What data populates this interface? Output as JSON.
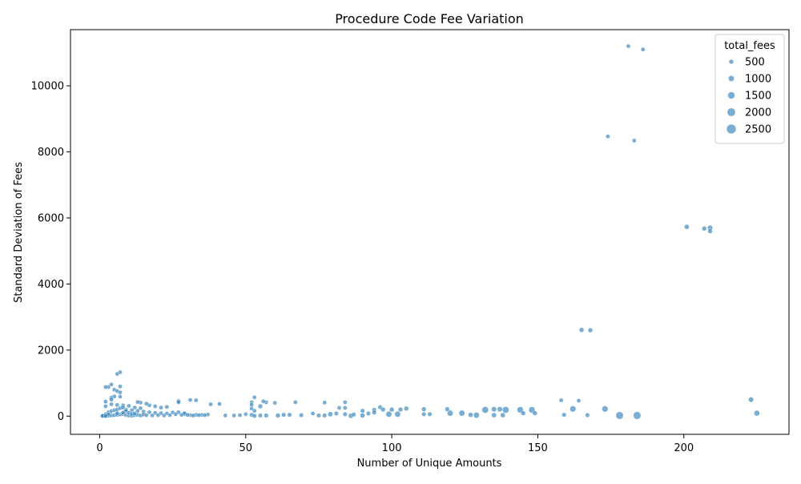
{
  "chart_data": {
    "type": "scatter",
    "title": "Procedure Code Fee Variation",
    "xlabel": "Number of Unique Amounts",
    "ylabel": "Standard Deviation of Fees",
    "xlim": [
      -10,
      236
    ],
    "ylim": [
      -550,
      11700
    ],
    "x_ticks": [
      0,
      50,
      100,
      150,
      200
    ],
    "y_ticks": [
      0,
      2000,
      4000,
      6000,
      8000,
      10000
    ],
    "grid": false,
    "legend": {
      "title": "total_fees",
      "placement": "top-right",
      "entries": [
        500,
        1000,
        1500,
        2000,
        2500
      ]
    },
    "point_color": "#1f77b4",
    "size_range": [
      0,
      2800
    ],
    "points": [
      [
        181,
        11200,
        300
      ],
      [
        186,
        11100,
        300
      ],
      [
        174,
        8470,
        300
      ],
      [
        183,
        8340,
        300
      ],
      [
        201,
        5730,
        600
      ],
      [
        207,
        5680,
        500
      ],
      [
        209,
        5700,
        700
      ],
      [
        209,
        5600,
        500
      ],
      [
        165,
        2610,
        500
      ],
      [
        168,
        2600,
        500
      ],
      [
        223,
        500,
        700
      ],
      [
        225,
        90,
        900
      ],
      [
        158,
        480,
        300
      ],
      [
        164,
        470,
        300
      ],
      [
        159,
        40,
        400
      ],
      [
        167,
        30,
        400
      ],
      [
        162,
        220,
        1100
      ],
      [
        173,
        220,
        1100
      ],
      [
        178,
        20,
        1700
      ],
      [
        184,
        20,
        1700
      ],
      [
        144,
        190,
        1200
      ],
      [
        148,
        190,
        1200
      ],
      [
        145,
        90,
        500
      ],
      [
        149,
        90,
        500
      ],
      [
        132,
        190,
        1300
      ],
      [
        139,
        190,
        1300
      ],
      [
        135,
        210,
        700
      ],
      [
        137,
        210,
        700
      ],
      [
        124,
        90,
        1000
      ],
      [
        120,
        90,
        1000
      ],
      [
        127,
        40,
        600
      ],
      [
        129,
        30,
        1000
      ],
      [
        135,
        30,
        600
      ],
      [
        138,
        30,
        600
      ],
      [
        119,
        210,
        500
      ],
      [
        111,
        210,
        500
      ],
      [
        111,
        60,
        400
      ],
      [
        113,
        60,
        400
      ],
      [
        105,
        230,
        500
      ],
      [
        103,
        200,
        500
      ],
      [
        99,
        60,
        1000
      ],
      [
        102,
        60,
        1000
      ],
      [
        100,
        200,
        500
      ],
      [
        96,
        270,
        400
      ],
      [
        97,
        200,
        500
      ],
      [
        94,
        190,
        400
      ],
      [
        94,
        110,
        400
      ],
      [
        92,
        80,
        400
      ],
      [
        90,
        160,
        400
      ],
      [
        90,
        20,
        600
      ],
      [
        86,
        10,
        600
      ],
      [
        87,
        50,
        400
      ],
      [
        84,
        420,
        300
      ],
      [
        84,
        250,
        300
      ],
      [
        82,
        250,
        300
      ],
      [
        81,
        80,
        400
      ],
      [
        79,
        60,
        600
      ],
      [
        84,
        60,
        400
      ],
      [
        77,
        410,
        300
      ],
      [
        73,
        80,
        300
      ],
      [
        75,
        20,
        400
      ],
      [
        77,
        20,
        400
      ],
      [
        69,
        30,
        400
      ],
      [
        67,
        420,
        300
      ],
      [
        65,
        40,
        400
      ],
      [
        63,
        40,
        400
      ],
      [
        61,
        20,
        500
      ],
      [
        60,
        400,
        300
      ],
      [
        57,
        420,
        300
      ],
      [
        56,
        450,
        300
      ],
      [
        55,
        300,
        500
      ],
      [
        53,
        570,
        300
      ],
      [
        52,
        420,
        300
      ],
      [
        52,
        340,
        300
      ],
      [
        52,
        230,
        300
      ],
      [
        53,
        160,
        300
      ],
      [
        52,
        40,
        400
      ],
      [
        53,
        10,
        400
      ],
      [
        55,
        20,
        400
      ],
      [
        57,
        20,
        400
      ],
      [
        50,
        60,
        300
      ],
      [
        48,
        30,
        300
      ],
      [
        46,
        20,
        300
      ],
      [
        43,
        20,
        300
      ],
      [
        41,
        370,
        300
      ],
      [
        38,
        360,
        300
      ],
      [
        37,
        50,
        300
      ],
      [
        35,
        40,
        300
      ],
      [
        33,
        40,
        300
      ],
      [
        31,
        30,
        300
      ],
      [
        33,
        480,
        300
      ],
      [
        31,
        490,
        300
      ],
      [
        29,
        60,
        300
      ],
      [
        27,
        460,
        300
      ],
      [
        27,
        420,
        300
      ],
      [
        23,
        280,
        300
      ],
      [
        21,
        260,
        300
      ],
      [
        19,
        300,
        300
      ],
      [
        17,
        330,
        300
      ],
      [
        16,
        380,
        300
      ],
      [
        14,
        410,
        300
      ],
      [
        13,
        430,
        300
      ],
      [
        7,
        1330,
        300
      ],
      [
        6,
        1280,
        300
      ],
      [
        7,
        900,
        300
      ],
      [
        4,
        960,
        300
      ],
      [
        3,
        880,
        300
      ],
      [
        2,
        880,
        300
      ],
      [
        5,
        800,
        300
      ],
      [
        6,
        760,
        300
      ],
      [
        7,
        720,
        300
      ],
      [
        5,
        600,
        300
      ],
      [
        7,
        590,
        300
      ],
      [
        4,
        560,
        300
      ],
      [
        4,
        500,
        300
      ],
      [
        2,
        440,
        300
      ],
      [
        2,
        300,
        300
      ],
      [
        4,
        360,
        300
      ],
      [
        6,
        340,
        300
      ],
      [
        8,
        330,
        300
      ],
      [
        10,
        310,
        300
      ],
      [
        12,
        260,
        300
      ],
      [
        14,
        240,
        300
      ],
      [
        9,
        200,
        300
      ],
      [
        11,
        180,
        300
      ],
      [
        13,
        160,
        300
      ],
      [
        15,
        140,
        300
      ],
      [
        17,
        120,
        300
      ],
      [
        19,
        100,
        300
      ],
      [
        21,
        90,
        300
      ],
      [
        23,
        80,
        300
      ],
      [
        25,
        110,
        300
      ],
      [
        27,
        120,
        300
      ],
      [
        29,
        90,
        300
      ],
      [
        26,
        60,
        300
      ],
      [
        28,
        40,
        300
      ],
      [
        30,
        40,
        300
      ],
      [
        32,
        20,
        300
      ],
      [
        34,
        30,
        300
      ],
      [
        36,
        30,
        300
      ],
      [
        1,
        20,
        300
      ],
      [
        2,
        10,
        300
      ],
      [
        3,
        10,
        300
      ],
      [
        4,
        20,
        300
      ],
      [
        5,
        30,
        300
      ],
      [
        6,
        40,
        300
      ],
      [
        7,
        50,
        300
      ],
      [
        8,
        60,
        300
      ],
      [
        9,
        30,
        300
      ],
      [
        10,
        20,
        300
      ],
      [
        11,
        10,
        300
      ],
      [
        12,
        30,
        300
      ],
      [
        13,
        40,
        300
      ],
      [
        14,
        20,
        300
      ],
      [
        15,
        50,
        300
      ],
      [
        16,
        30,
        300
      ],
      [
        18,
        20,
        300
      ],
      [
        20,
        30,
        300
      ],
      [
        22,
        20,
        300
      ],
      [
        24,
        30,
        300
      ],
      [
        3,
        120,
        300
      ],
      [
        4,
        150,
        300
      ],
      [
        5,
        180,
        300
      ],
      [
        6,
        200,
        300
      ],
      [
        7,
        240,
        300
      ],
      [
        8,
        260,
        300
      ],
      [
        9,
        150,
        300
      ],
      [
        10,
        100,
        300
      ],
      [
        11,
        70,
        300
      ],
      [
        12,
        80,
        300
      ],
      [
        2,
        60,
        300
      ],
      [
        3,
        50,
        300
      ],
      [
        1,
        5,
        300
      ],
      [
        2,
        5,
        300
      ],
      [
        6,
        90,
        300
      ],
      [
        8,
        110,
        300
      ]
    ]
  }
}
